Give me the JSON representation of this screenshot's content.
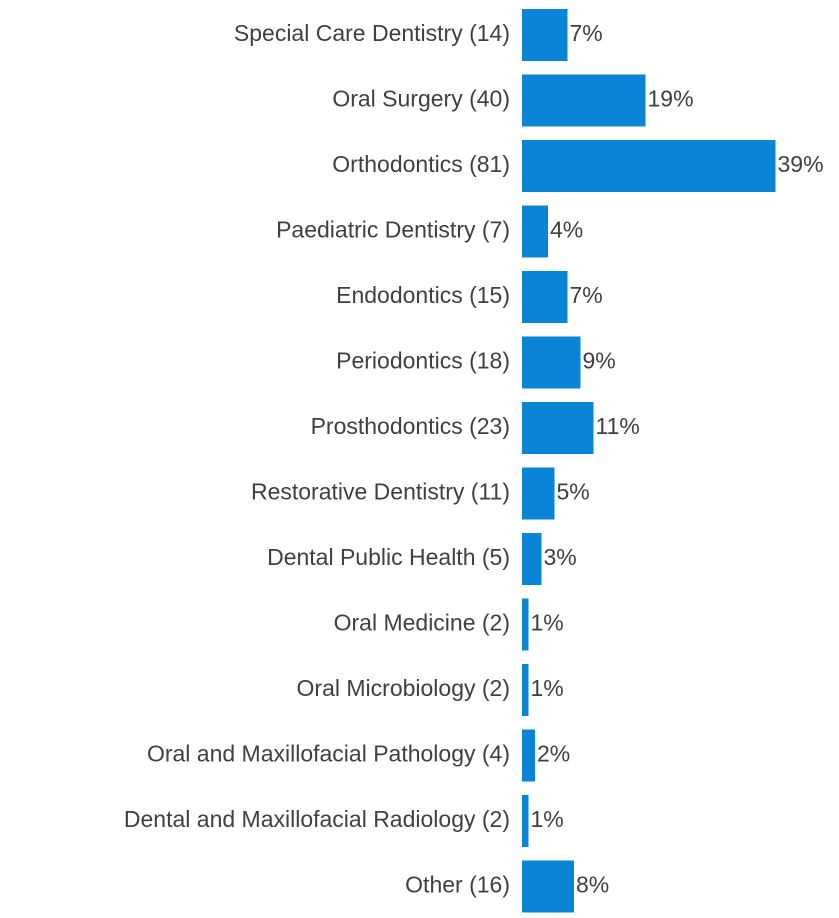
{
  "chart_data": {
    "type": "bar",
    "orientation": "horizontal",
    "categories": [
      "Special Care Dentistry (14)",
      "Oral Surgery (40)",
      "Orthodontics (81)",
      "Paediatric Dentistry (7)",
      "Endodontics (15)",
      "Periodontics (18)",
      "Prosthodontics (23)",
      "Restorative Dentistry (11)",
      "Dental Public Health (5)",
      "Oral Medicine (2)",
      "Oral Microbiology (2)",
      "Oral and Maxillofacial Pathology (4)",
      "Dental and Maxillofacial Radiology (2)",
      "Other (16)"
    ],
    "values": [
      7,
      19,
      39,
      4,
      7,
      9,
      11,
      5,
      3,
      1,
      1,
      2,
      1,
      8
    ],
    "value_labels": [
      "7%",
      "19%",
      "39%",
      "4%",
      "7%",
      "9%",
      "11%",
      "5%",
      "3%",
      "1%",
      "1%",
      "2%",
      "1%",
      "8%"
    ],
    "color": "#0984d6",
    "xlim": [
      0,
      40
    ]
  }
}
